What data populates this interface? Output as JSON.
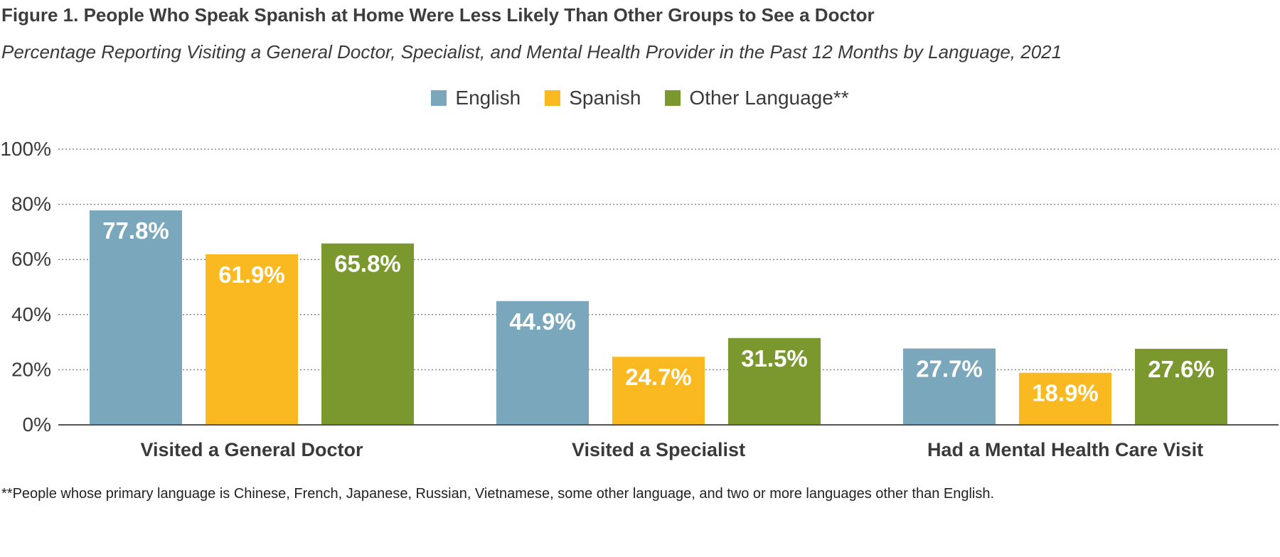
{
  "title": "Figure 1. People Who Speak Spanish at Home Were Less Likely Than Other Groups to See a Doctor",
  "subtitle": "Percentage Reporting Visiting a General Doctor, Specialist, and Mental Health Provider in the Past 12 Months by Language, 2021",
  "footnote": "**People whose primary language is Chinese, French, Japanese, Russian, Vietnamese, some other language, and two or more languages other than English.",
  "colors": {
    "english": "#7ba7bc",
    "spanish": "#fbb921",
    "other": "#7b982f",
    "axis": "#555555",
    "grid": "#8a8a8a"
  },
  "chart_data": {
    "type": "bar",
    "categories": [
      "Visited a General Doctor",
      "Visited a Specialist",
      "Had a Mental Health Care Visit"
    ],
    "series": [
      {
        "name": "English",
        "values": [
          77.8,
          44.9,
          27.7
        ],
        "labels": [
          "77.8%",
          "44.9%",
          "27.7%"
        ]
      },
      {
        "name": "Spanish",
        "values": [
          61.9,
          24.7,
          18.9
        ],
        "labels": [
          "61.9%",
          "24.7%",
          "18.9%"
        ]
      },
      {
        "name": "Other Language**",
        "values": [
          65.8,
          31.5,
          27.6
        ],
        "labels": [
          "65.8%",
          "31.5%",
          "27.6%"
        ]
      }
    ],
    "ylim": [
      0,
      100
    ],
    "yticks": [
      "0%",
      "20%",
      "40%",
      "60%",
      "80%",
      "100%"
    ],
    "grid": "dotted horizontal",
    "legend": "top-center"
  }
}
